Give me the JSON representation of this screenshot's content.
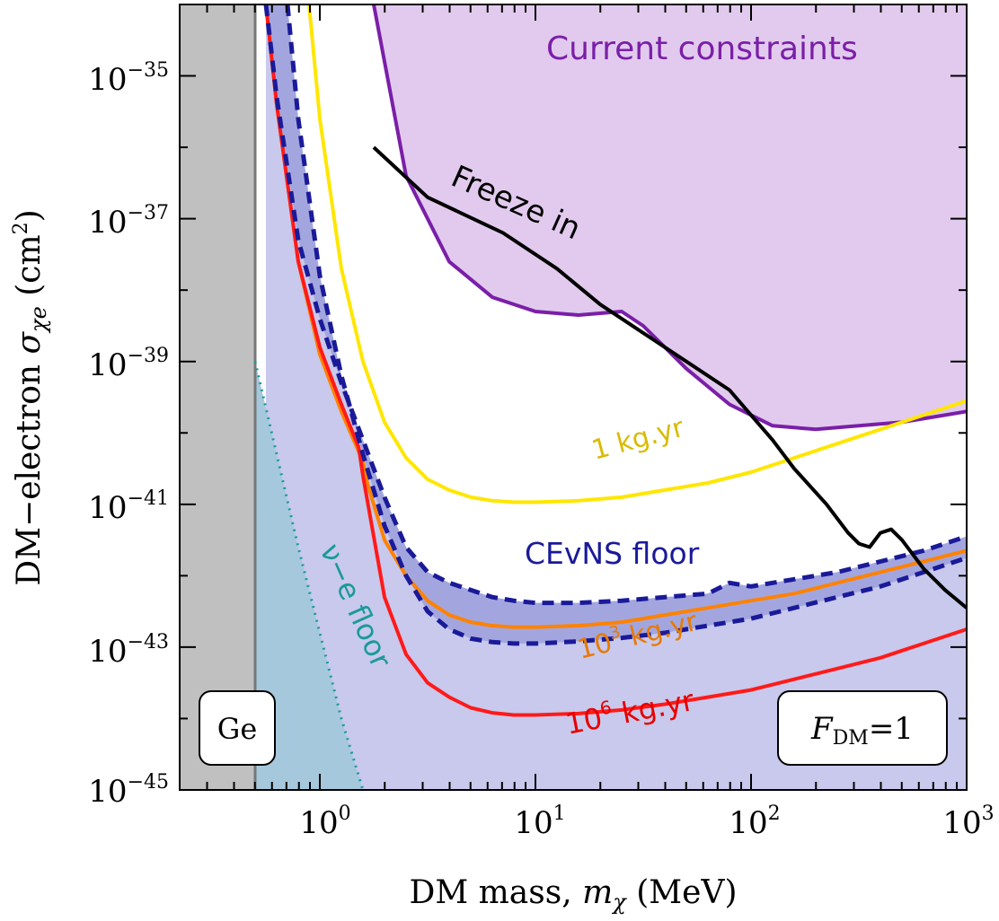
{
  "chart_data": {
    "type": "line",
    "x_scale": "log",
    "y_scale": "log",
    "xlim_log10": [
      -0.65,
      3.0
    ],
    "ylim_log10": [
      -45.0,
      -34.0
    ],
    "x_axis": {
      "label_prefix": "DM mass, ",
      "label_symbol": "m",
      "label_sub": "χ",
      "label_suffix": " (MeV)",
      "tick_exponents": [
        "0",
        "1",
        "2",
        "3"
      ]
    },
    "y_axis": {
      "label_prefix": "DM−electron ",
      "label_symbol": "σ",
      "label_sub": "χe",
      "label_suffix_open": " (cm",
      "label_sup": "2",
      "label_suffix_close": ")",
      "tick_exponents": [
        "−35",
        "−37",
        "−39",
        "−41",
        "−43",
        "−45"
      ]
    },
    "tick_base": "10",
    "regions": [
      {
        "name": "Ge threshold",
        "x_log10": [
          -0.65,
          -0.3
        ],
        "color": "#c0c0c0"
      },
      {
        "name": "Current constraints",
        "color": "#e2caee",
        "edge": "#7a1fa8",
        "x_log10": [
          0.25,
          0.4,
          0.6,
          0.8,
          1.0,
          1.2,
          1.4,
          1.5,
          1.6,
          1.7,
          1.9,
          2.1,
          2.3,
          2.5,
          2.7,
          2.9,
          3.0
        ],
        "y_log10": [
          -34.0,
          -36.4,
          -37.6,
          -38.1,
          -38.3,
          -38.35,
          -38.3,
          -38.5,
          -38.8,
          -39.1,
          -39.6,
          -39.9,
          -39.95,
          -39.9,
          -39.85,
          -39.75,
          -39.7
        ]
      },
      {
        "name": "neutrino-electron floor region",
        "color": "#a6c8dd",
        "x_log10": [
          -0.3,
          -0.2,
          -0.1,
          0.0,
          0.1,
          0.2
        ],
        "y_log10": [
          -39.0,
          -40.3,
          -41.6,
          -42.8,
          -44.0,
          -45.0
        ]
      },
      {
        "name": "below CEvNS floor",
        "color": "#c8c9ec"
      }
    ],
    "series": [
      {
        "name": "1 kg.yr",
        "color": "#ffe600",
        "x_log10": [
          -0.05,
          0.0,
          0.1,
          0.2,
          0.3,
          0.4,
          0.5,
          0.6,
          0.7,
          0.8,
          0.9,
          1.0,
          1.2,
          1.4,
          1.6,
          1.8,
          2.0,
          2.2,
          2.4,
          2.6,
          2.8,
          3.0
        ],
        "y_log10": [
          -34.0,
          -35.6,
          -37.7,
          -39.0,
          -39.85,
          -40.35,
          -40.65,
          -40.8,
          -40.9,
          -40.95,
          -40.97,
          -40.97,
          -40.95,
          -40.9,
          -40.8,
          -40.7,
          -40.55,
          -40.35,
          -40.15,
          -39.95,
          -39.75,
          -39.55
        ]
      },
      {
        "name": "10³ kg.yr",
        "color": "#ff8200",
        "x_log10": [
          -0.25,
          -0.2,
          -0.1,
          0.0,
          0.1,
          0.2,
          0.22,
          0.3,
          0.4,
          0.5,
          0.6,
          0.7,
          0.8,
          0.9,
          1.0,
          1.2,
          1.4,
          1.6,
          1.8,
          2.0,
          2.2,
          2.4,
          2.6,
          2.8,
          3.0
        ],
        "y_log10": [
          -34.0,
          -35.4,
          -37.6,
          -38.9,
          -39.7,
          -40.4,
          -40.7,
          -41.5,
          -42.0,
          -42.35,
          -42.55,
          -42.65,
          -42.7,
          -42.72,
          -42.72,
          -42.7,
          -42.65,
          -42.55,
          -42.45,
          -42.35,
          -42.25,
          -42.1,
          -41.95,
          -41.8,
          -41.65
        ]
      },
      {
        "name": "10⁶ kg.yr",
        "color": "#ff1a1a",
        "x_log10": [
          -0.25,
          -0.2,
          -0.1,
          0.0,
          0.1,
          0.18,
          0.2,
          0.3,
          0.4,
          0.5,
          0.6,
          0.7,
          0.8,
          0.9,
          1.0,
          1.2,
          1.4,
          1.6,
          1.8,
          2.0,
          2.2,
          2.4,
          2.6,
          2.8,
          3.0
        ],
        "y_log10": [
          -34.0,
          -35.4,
          -37.6,
          -38.8,
          -39.6,
          -40.2,
          -40.6,
          -42.3,
          -43.1,
          -43.5,
          -43.7,
          -43.85,
          -43.92,
          -43.95,
          -43.95,
          -43.93,
          -43.88,
          -43.8,
          -43.7,
          -43.6,
          -43.45,
          -43.3,
          -43.15,
          -42.95,
          -42.75
        ]
      },
      {
        "name": "CEvNS floor upper",
        "color": "#1a1a99",
        "dashed": true,
        "x_log10": [
          -0.25,
          -0.2,
          -0.1,
          0.0,
          0.1,
          0.2,
          0.3,
          0.4,
          0.5,
          0.6,
          0.7,
          0.8,
          0.9,
          1.0,
          1.2,
          1.4,
          1.6,
          1.8,
          1.9,
          2.0,
          2.2,
          2.4,
          2.6,
          2.8,
          3.0
        ],
        "y_log10": [
          -34.0,
          -35.3,
          -37.3,
          -38.4,
          -39.3,
          -40.1,
          -40.9,
          -41.6,
          -41.95,
          -42.1,
          -42.2,
          -42.3,
          -42.35,
          -42.38,
          -42.38,
          -42.35,
          -42.3,
          -42.25,
          -42.1,
          -42.15,
          -42.05,
          -41.95,
          -41.8,
          -41.65,
          -41.45
        ]
      },
      {
        "name": "CEvNS floor lower",
        "color": "#1a1a99",
        "dashed": true,
        "x_log10": [
          -0.15,
          -0.1,
          0.0,
          0.1,
          0.2,
          0.3,
          0.4,
          0.5,
          0.6,
          0.7,
          0.8,
          0.9,
          1.0,
          1.2,
          1.4,
          1.6,
          1.8,
          2.0,
          2.2,
          2.4,
          2.6,
          2.8,
          3.0
        ],
        "y_log10": [
          -34.0,
          -35.6,
          -37.8,
          -39.2,
          -40.3,
          -41.3,
          -42.0,
          -42.5,
          -42.75,
          -42.88,
          -42.93,
          -42.95,
          -42.95,
          -42.92,
          -42.87,
          -42.8,
          -42.7,
          -42.6,
          -42.45,
          -42.3,
          -42.15,
          -41.95,
          -41.75
        ]
      },
      {
        "name": "Freeze in",
        "color": "#000000",
        "x_log10": [
          0.25,
          0.5,
          0.85,
          1.1,
          1.3,
          1.5,
          1.7,
          1.9,
          2.0,
          2.1,
          2.2,
          2.35,
          2.45,
          2.5,
          2.55,
          2.6,
          2.65,
          2.7,
          2.8,
          2.9,
          3.0
        ],
        "y_log10": [
          -36.0,
          -36.7,
          -37.2,
          -37.7,
          -38.2,
          -38.6,
          -39.0,
          -39.4,
          -39.75,
          -40.1,
          -40.5,
          -41.0,
          -41.4,
          -41.55,
          -41.6,
          -41.4,
          -41.35,
          -41.5,
          -41.9,
          -42.2,
          -42.45
        ]
      },
      {
        "name": "ν−e floor",
        "color": "#1a9a9a",
        "dotted": true,
        "x_log10": [
          -0.3,
          -0.2,
          -0.1,
          0.0,
          0.1,
          0.2
        ],
        "y_log10": [
          -39.0,
          -40.3,
          -41.6,
          -42.8,
          -44.0,
          -45.0
        ]
      }
    ],
    "annotations": {
      "constraints": "Current constraints",
      "freeze_in": "Freeze in",
      "one_kg": "1 kg.yr",
      "thousand_kg_prefix": "10",
      "thousand_kg_sup": "3",
      "thousand_kg_suffix": " kg.yr",
      "million_kg_prefix": "10",
      "million_kg_sup": "6",
      "million_kg_suffix": " kg.yr",
      "cevns": "CEvNS floor",
      "nu_e": "ν−e floor",
      "ge": "Ge",
      "fdm_symbol": "F",
      "fdm_sub": "DM",
      "fdm_value": "=1"
    }
  }
}
